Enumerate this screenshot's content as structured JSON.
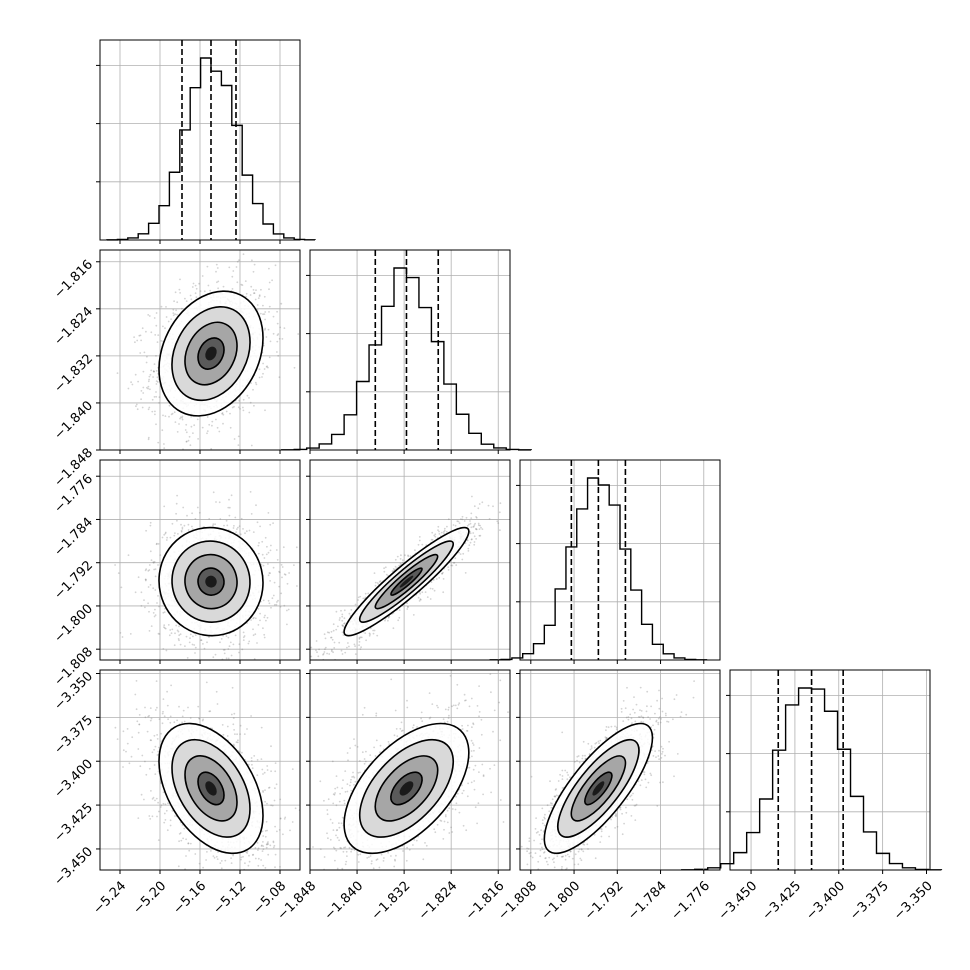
{
  "chart_data": {
    "type": "corner",
    "title": "",
    "grid": true,
    "parameters": [
      {
        "range": [
          -5.26,
          -5.06
        ],
        "ticks": [
          "-5.24",
          "-5.20",
          "-5.16",
          "-5.12",
          "-5.08"
        ],
        "quantiles": [
          -5.178,
          -5.149,
          -5.124
        ],
        "median": -5.149,
        "sigma": 0.026
      },
      {
        "range": [
          -1.848,
          -1.814
        ],
        "ticks": [
          "-1.848",
          "-1.840",
          "-1.832",
          "-1.824",
          "-1.816"
        ],
        "quantiles": [
          -1.8369,
          -1.8316,
          -1.8262
        ],
        "median": -1.8316,
        "sigma": 0.0053
      },
      {
        "range": [
          -1.81,
          -1.773
        ],
        "ticks": [
          "-1.808",
          "-1.800",
          "-1.792",
          "-1.784",
          "-1.776"
        ],
        "quantiles": [
          -1.8005,
          -1.7955,
          -1.7905
        ],
        "median": -1.7955,
        "sigma": 0.005
      },
      {
        "range": [
          -3.462,
          -3.348
        ],
        "ticks": [
          "-3.450",
          "-3.425",
          "-3.400",
          "-3.375",
          "-3.350"
        ],
        "quantiles": [
          -3.4345,
          -3.4155,
          -3.3975
        ],
        "median": -3.4155,
        "sigma": 0.0185
      }
    ],
    "correlations": [
      {
        "i": 1,
        "j": 0,
        "rho": 0.25
      },
      {
        "i": 2,
        "j": 0,
        "rho": -0.02
      },
      {
        "i": 2,
        "j": 1,
        "rho": 0.93
      },
      {
        "i": 3,
        "j": 0,
        "rho": -0.42
      },
      {
        "i": 3,
        "j": 1,
        "rho": 0.55
      },
      {
        "i": 3,
        "j": 2,
        "rho": 0.78
      }
    ],
    "contour_levels_sigma": [
      0.5,
      1.0,
      1.5,
      2.0
    ],
    "histogram_bins": 20,
    "point_color": "#808080",
    "line_color": "#000000"
  }
}
